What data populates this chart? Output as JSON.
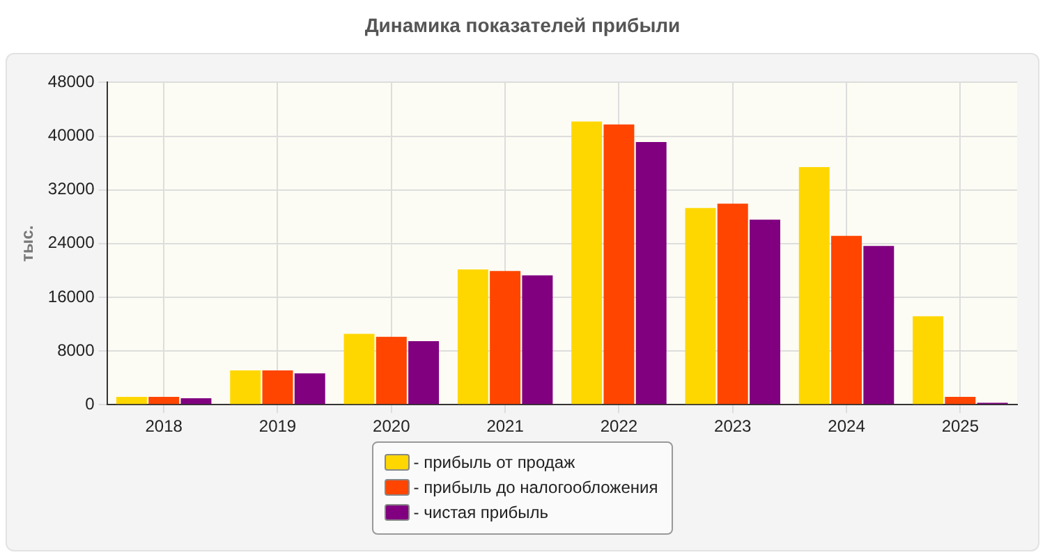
{
  "chart_data": {
    "type": "bar",
    "title": "Динамика показателей прибыли",
    "ylabel": "тыс.",
    "categories": [
      "2018",
      "2019",
      "2020",
      "2021",
      "2022",
      "2023",
      "2024",
      "2025"
    ],
    "series": [
      {
        "name": "- прибыль от продаж",
        "color": "#ffd700",
        "values": [
          1160,
          5090,
          10540,
          20140,
          42180,
          29300,
          35400,
          13160
        ]
      },
      {
        "name": "- прибыль до налогообложения",
        "color": "#ff4500",
        "values": [
          1160,
          5090,
          10100,
          19920,
          41730,
          29950,
          25150,
          1160
        ]
      },
      {
        "name": "- чистая прибыль",
        "color": "#800080",
        "values": [
          950,
          4650,
          9450,
          19270,
          39110,
          27560,
          23630,
          290
        ]
      }
    ],
    "ylim": [
      0,
      48000
    ],
    "yticks": [
      0,
      8000,
      16000,
      24000,
      32000,
      40000,
      48000
    ],
    "grid": true,
    "legend": "bottom"
  }
}
